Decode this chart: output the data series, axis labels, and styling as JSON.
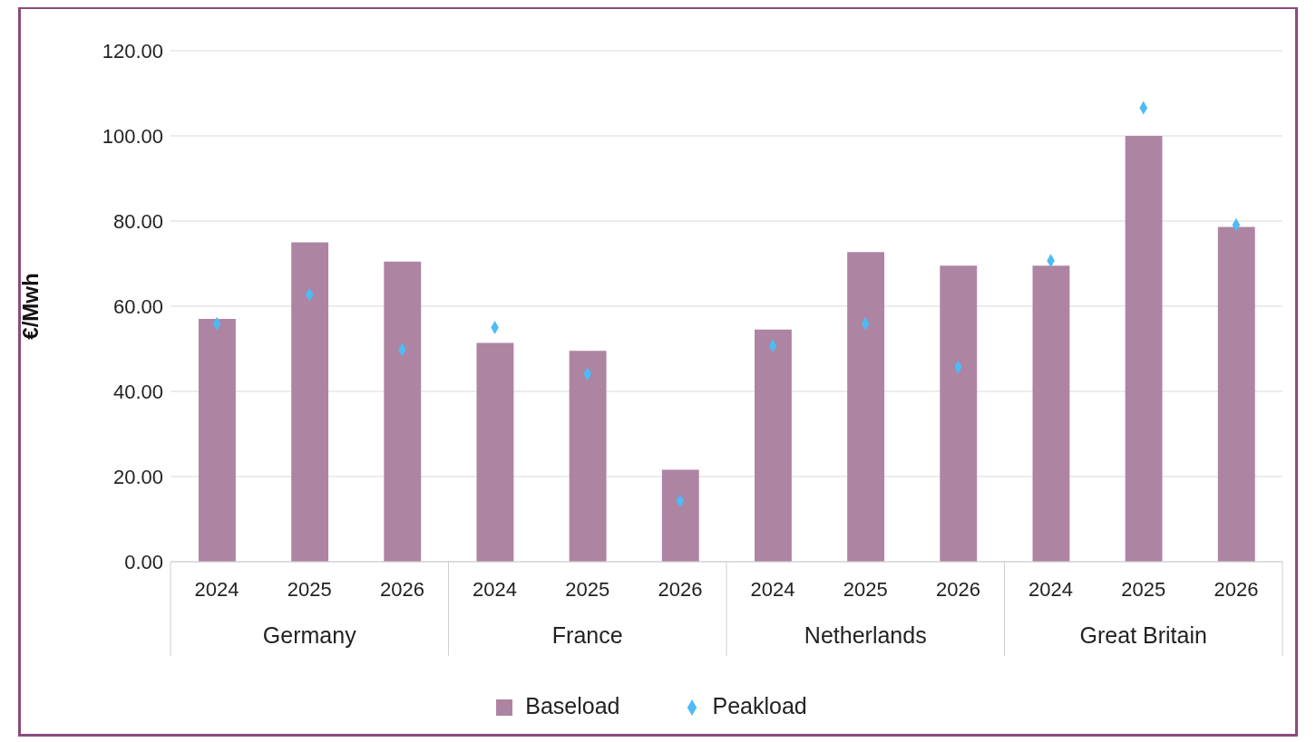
{
  "chart_data": {
    "type": "bar",
    "ylabel": "€/Mwh",
    "categories": [
      "2024",
      "2025",
      "2026",
      "2024",
      "2025",
      "2026",
      "2024",
      "2025",
      "2026",
      "2024",
      "2025",
      "2026"
    ],
    "annotations": [
      "Germany",
      "France",
      "Netherlands",
      "Great Britain"
    ],
    "series": [
      {
        "name": "Baseload",
        "color": "#ad84a2",
        "values": [
          57,
          75,
          70.5,
          51.4,
          49.5,
          21.6,
          54.5,
          72.7,
          69.5,
          69.5,
          100,
          78.6
        ]
      },
      {
        "name": "Peakload",
        "type": "scatter",
        "color": "#4dbbf5",
        "values": [
          55.9,
          62.7,
          49.8,
          55,
          44.1,
          14.3,
          50.7,
          55.9,
          45.7,
          70.7,
          106.6,
          79.1
        ]
      }
    ],
    "ylim": [
      0,
      120
    ],
    "yticks": [
      {
        "value": 0,
        "label": "0.00"
      },
      {
        "value": 20,
        "label": "20.00"
      },
      {
        "value": 40,
        "label": "40.00"
      },
      {
        "value": 60,
        "label": "60.00"
      },
      {
        "value": 80,
        "label": "80.00"
      },
      {
        "value": 100,
        "label": "100.00"
      },
      {
        "value": 120,
        "label": "120.00"
      }
    ],
    "grid": "y",
    "legend": "bottom",
    "marker": "diamond"
  }
}
